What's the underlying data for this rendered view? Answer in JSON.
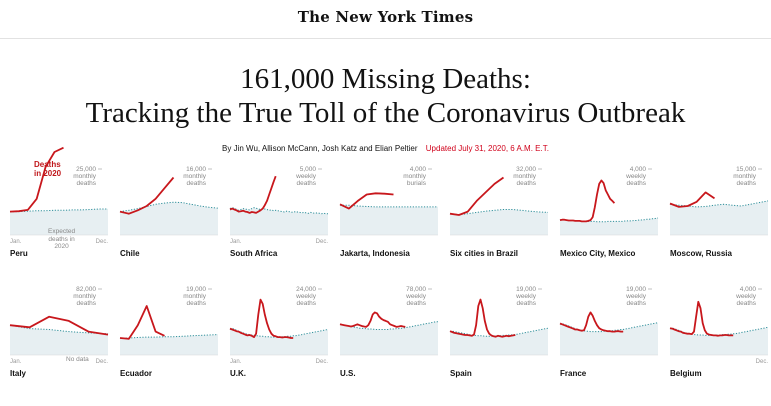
{
  "masthead": "The New York Times",
  "headline": {
    "line1": "161,000 Missing Deaths:",
    "line2": "Tracking the True Toll of the Coronavirus Outbreak"
  },
  "byline": {
    "authors": "By Jin Wu, Allison McCann, Josh Katz and Elian Peltier",
    "updated": "Updated July 31, 2020, 6 A.M. E.T."
  },
  "annotations": {
    "deaths_2020_line1": "Deaths",
    "deaths_2020_line2": "in 2020",
    "expected_line1": "Expected",
    "expected_line2": "deaths in",
    "expected_line3": "2020",
    "no_data": "No data"
  },
  "colors": {
    "actual": "#c8171c",
    "expected_fill": "#e7eff2",
    "expected_line": "#2e8f9a"
  },
  "charts": [
    {
      "name": "Peru",
      "scale_top": "25,000",
      "scale_unit1": "monthly",
      "scale_unit2": "deaths",
      "x_start": "Jan.",
      "x_end": "Dec.",
      "expected": [
        0.55,
        0.55,
        0.56,
        0.57,
        0.57,
        0.58,
        0.58,
        0.59,
        0.59,
        0.6,
        0.61,
        0.61
      ],
      "actual": [
        0.55,
        0.56,
        0.59,
        0.85,
        1.6,
        1.95,
        2.05
      ]
    },
    {
      "name": "Chile",
      "scale_top": "16,000",
      "scale_unit1": "monthly",
      "scale_unit2": "deaths",
      "x_start": "",
      "x_end": "",
      "expected": [
        0.55,
        0.58,
        0.62,
        0.67,
        0.72,
        0.75,
        0.77,
        0.76,
        0.72,
        0.68,
        0.65,
        0.63
      ],
      "actual": [
        0.55,
        0.5,
        0.58,
        0.68,
        0.85,
        1.1,
        1.35
      ]
    },
    {
      "name": "South Africa",
      "scale_top": "5,000",
      "scale_unit1": "weekly",
      "scale_unit2": "deaths",
      "x_start": "Jan.",
      "x_end": "Dec.",
      "expected": [
        0.62,
        0.64,
        0.63,
        0.6,
        0.58,
        0.6,
        0.62,
        0.61,
        0.6,
        0.59,
        0.62,
        0.64,
        0.63,
        0.61,
        0.6,
        0.62,
        0.61,
        0.6,
        0.58,
        0.59,
        0.57,
        0.58,
        0.57,
        0.56,
        0.55,
        0.54,
        0.56,
        0.55,
        0.54,
        0.53,
        0.55,
        0.54,
        0.53,
        0.52,
        0.53,
        0.52,
        0.51,
        0.53,
        0.52,
        0.51,
        0.52,
        0.51,
        0.5,
        0.51,
        0.5,
        0.5
      ],
      "actual": [
        0.6,
        0.62,
        0.6,
        0.58,
        0.55,
        0.56,
        0.57,
        0.55,
        0.54,
        0.52,
        0.54,
        0.53,
        0.52,
        0.55,
        0.58,
        0.62,
        0.7,
        0.8,
        0.95,
        1.1,
        1.25,
        1.38
      ]
    },
    {
      "name": "Jakarta, Indonesia",
      "scale_top": "4,000",
      "scale_unit1": "monthly",
      "scale_unit2": "burials",
      "x_start": "",
      "x_end": "",
      "expected": [
        0.7,
        0.7,
        0.68,
        0.67,
        0.66,
        0.66,
        0.66,
        0.66,
        0.66,
        0.66,
        0.66,
        0.66
      ],
      "actual": [
        0.72,
        0.62,
        0.8,
        0.95,
        0.98,
        0.97,
        0.95
      ]
    },
    {
      "name": "Six cities in Brazil",
      "scale_top": "32,000",
      "scale_unit1": "monthly",
      "scale_unit2": "deaths",
      "x_start": "",
      "x_end": "",
      "expected": [
        0.5,
        0.48,
        0.5,
        0.53,
        0.56,
        0.58,
        0.6,
        0.6,
        0.58,
        0.56,
        0.54,
        0.53
      ],
      "actual": [
        0.5,
        0.47,
        0.55,
        0.8,
        1.0,
        1.2,
        1.35
      ]
    },
    {
      "name": "Mexico City, Mexico",
      "scale_top": "4,000",
      "scale_unit1": "weekly",
      "scale_unit2": "deaths",
      "x_start": "",
      "x_end": "",
      "expected": [
        0.35,
        0.36,
        0.36,
        0.35,
        0.34,
        0.34,
        0.34,
        0.33,
        0.33,
        0.33,
        0.32,
        0.32,
        0.32,
        0.32,
        0.32,
        0.32,
        0.32,
        0.31,
        0.31,
        0.31,
        0.31,
        0.31,
        0.32,
        0.32,
        0.32,
        0.32,
        0.32,
        0.32,
        0.32,
        0.32,
        0.33,
        0.33,
        0.33,
        0.33,
        0.34,
        0.34,
        0.35,
        0.35,
        0.36,
        0.36,
        0.37,
        0.37,
        0.38,
        0.38,
        0.39,
        0.4
      ],
      "actual": [
        0.35,
        0.36,
        0.36,
        0.35,
        0.34,
        0.34,
        0.34,
        0.33,
        0.33,
        0.33,
        0.32,
        0.32,
        0.32,
        0.33,
        0.35,
        0.42,
        0.65,
        0.95,
        1.2,
        1.28,
        1.22,
        1.05,
        0.95,
        0.85,
        0.8,
        0.75
      ]
    },
    {
      "name": "Moscow, Russia",
      "scale_top": "15,000",
      "scale_unit1": "monthly",
      "scale_unit2": "deaths",
      "x_start": "",
      "x_end": "",
      "expected": [
        0.72,
        0.7,
        0.68,
        0.66,
        0.67,
        0.7,
        0.72,
        0.7,
        0.68,
        0.72,
        0.76,
        0.8
      ],
      "actual": [
        0.74,
        0.66,
        0.68,
        0.78,
        1.0,
        0.86
      ]
    },
    {
      "name": "Italy",
      "scale_top": "82,000",
      "scale_unit1": "monthly",
      "scale_unit2": "deaths",
      "x_start": "Jan.",
      "x_end": "Dec.",
      "expected": [
        0.7,
        0.62,
        0.6,
        0.55,
        0.52,
        0.5
      ],
      "actual": [
        0.7,
        0.65,
        0.9,
        0.8,
        0.55,
        0.48
      ]
    },
    {
      "name": "Ecuador",
      "scale_top": "19,000",
      "scale_unit1": "monthly",
      "scale_unit2": "deaths",
      "x_start": "",
      "x_end": "",
      "expected": [
        0.4,
        0.4,
        0.41,
        0.42,
        0.42,
        0.43,
        0.43,
        0.44,
        0.45,
        0.46,
        0.47,
        0.48
      ],
      "actual": [
        0.4,
        0.38,
        0.7,
        1.15,
        0.55,
        0.45
      ]
    },
    {
      "name": "U.K.",
      "scale_top": "24,000",
      "scale_unit1": "weekly",
      "scale_unit2": "deaths",
      "x_start": "Jan.",
      "x_end": "Dec.",
      "expected": [
        0.6,
        0.62,
        0.61,
        0.58,
        0.56,
        0.54,
        0.52,
        0.5,
        0.49,
        0.48,
        0.47,
        0.46,
        0.45,
        0.45,
        0.44,
        0.44,
        0.43,
        0.43,
        0.43,
        0.42,
        0.42,
        0.42,
        0.42,
        0.43,
        0.43,
        0.43,
        0.44,
        0.44,
        0.44,
        0.45,
        0.45,
        0.46,
        0.47,
        0.48,
        0.49,
        0.5,
        0.51,
        0.52,
        0.53,
        0.54,
        0.55,
        0.56,
        0.57,
        0.58,
        0.59,
        0.6
      ],
      "actual": [
        0.62,
        0.6,
        0.58,
        0.56,
        0.55,
        0.52,
        0.5,
        0.48,
        0.46,
        0.47,
        0.45,
        0.42,
        0.5,
        0.95,
        1.3,
        1.2,
        0.95,
        0.75,
        0.6,
        0.5,
        0.45,
        0.44,
        0.42,
        0.42,
        0.41,
        0.42,
        0.42,
        0.41,
        0.4,
        0.4
      ]
    },
    {
      "name": "U.S.",
      "scale_top": "78,000",
      "scale_unit1": "weekly",
      "scale_unit2": "deaths",
      "x_start": "",
      "x_end": "",
      "expected": [
        0.72,
        0.71,
        0.7,
        0.69,
        0.68,
        0.67,
        0.66,
        0.65,
        0.64,
        0.63,
        0.63,
        0.62,
        0.62,
        0.61,
        0.61,
        0.61,
        0.6,
        0.6,
        0.6,
        0.6,
        0.6,
        0.6,
        0.6,
        0.61,
        0.61,
        0.61,
        0.62,
        0.62,
        0.63,
        0.63,
        0.64,
        0.65,
        0.66,
        0.67,
        0.68,
        0.69,
        0.7,
        0.71,
        0.72,
        0.73,
        0.74,
        0.75,
        0.76,
        0.77,
        0.78,
        0.78
      ],
      "actual": [
        0.72,
        0.71,
        0.7,
        0.69,
        0.68,
        0.67,
        0.68,
        0.7,
        0.72,
        0.7,
        0.68,
        0.67,
        0.66,
        0.7,
        0.8,
        0.95,
        1.0,
        0.98,
        0.9,
        0.85,
        0.82,
        0.8,
        0.78,
        0.72,
        0.7,
        0.68,
        0.66,
        0.67,
        0.68,
        0.67,
        0.66
      ]
    },
    {
      "name": "Spain",
      "scale_top": "19,000",
      "scale_unit1": "weekly",
      "scale_unit2": "deaths",
      "x_start": "",
      "x_end": "",
      "expected": [
        0.55,
        0.56,
        0.55,
        0.54,
        0.53,
        0.52,
        0.51,
        0.5,
        0.49,
        0.48,
        0.47,
        0.46,
        0.46,
        0.45,
        0.45,
        0.45,
        0.44,
        0.44,
        0.44,
        0.44,
        0.44,
        0.45,
        0.45,
        0.45,
        0.46,
        0.46,
        0.46,
        0.47,
        0.47,
        0.48,
        0.48,
        0.49,
        0.5,
        0.51,
        0.52,
        0.53,
        0.54,
        0.55,
        0.56,
        0.57,
        0.58,
        0.59,
        0.6,
        0.61,
        0.62,
        0.63
      ],
      "actual": [
        0.56,
        0.54,
        0.52,
        0.51,
        0.5,
        0.49,
        0.48,
        0.47,
        0.47,
        0.46,
        0.45,
        0.48,
        0.7,
        1.15,
        1.3,
        1.1,
        0.8,
        0.6,
        0.5,
        0.46,
        0.44,
        0.43,
        0.45,
        0.44,
        0.43,
        0.44,
        0.45,
        0.44,
        0.45,
        0.46,
        0.47
      ]
    },
    {
      "name": "France",
      "scale_top": "19,000",
      "scale_unit1": "weekly",
      "scale_unit2": "deaths",
      "x_start": "",
      "x_end": "",
      "expected": [
        0.72,
        0.73,
        0.72,
        0.7,
        0.68,
        0.66,
        0.64,
        0.62,
        0.6,
        0.59,
        0.58,
        0.57,
        0.56,
        0.56,
        0.55,
        0.55,
        0.55,
        0.55,
        0.55,
        0.55,
        0.56,
        0.56,
        0.56,
        0.57,
        0.57,
        0.58,
        0.58,
        0.59,
        0.6,
        0.6,
        0.61,
        0.62,
        0.63,
        0.64,
        0.65,
        0.66,
        0.67,
        0.68,
        0.69,
        0.7,
        0.71,
        0.72,
        0.73,
        0.74,
        0.75,
        0.76
      ],
      "actual": [
        0.74,
        0.72,
        0.7,
        0.68,
        0.66,
        0.64,
        0.62,
        0.6,
        0.6,
        0.58,
        0.57,
        0.58,
        0.7,
        0.9,
        1.0,
        0.92,
        0.8,
        0.7,
        0.63,
        0.6,
        0.58,
        0.57,
        0.56,
        0.56,
        0.55,
        0.55,
        0.56,
        0.56,
        0.55,
        0.55
      ]
    },
    {
      "name": "Belgium",
      "scale_top": "4,000",
      "scale_unit1": "weekly",
      "scale_unit2": "deaths",
      "x_start": "",
      "x_end": "Dec.",
      "expected": [
        0.62,
        0.63,
        0.62,
        0.6,
        0.58,
        0.56,
        0.54,
        0.52,
        0.51,
        0.5,
        0.49,
        0.48,
        0.48,
        0.47,
        0.47,
        0.47,
        0.46,
        0.46,
        0.46,
        0.46,
        0.46,
        0.47,
        0.47,
        0.47,
        0.48,
        0.48,
        0.48,
        0.49,
        0.49,
        0.5,
        0.5,
        0.51,
        0.52,
        0.53,
        0.54,
        0.55,
        0.56,
        0.57,
        0.58,
        0.59,
        0.6,
        0.61,
        0.62,
        0.63,
        0.64,
        0.65
      ],
      "actual": [
        0.63,
        0.62,
        0.6,
        0.58,
        0.56,
        0.55,
        0.52,
        0.51,
        0.5,
        0.5,
        0.49,
        0.55,
        0.9,
        1.25,
        1.1,
        0.75,
        0.58,
        0.5,
        0.48,
        0.47,
        0.46,
        0.46,
        0.45,
        0.46,
        0.46,
        0.47,
        0.47,
        0.46,
        0.46,
        0.46
      ]
    }
  ]
}
